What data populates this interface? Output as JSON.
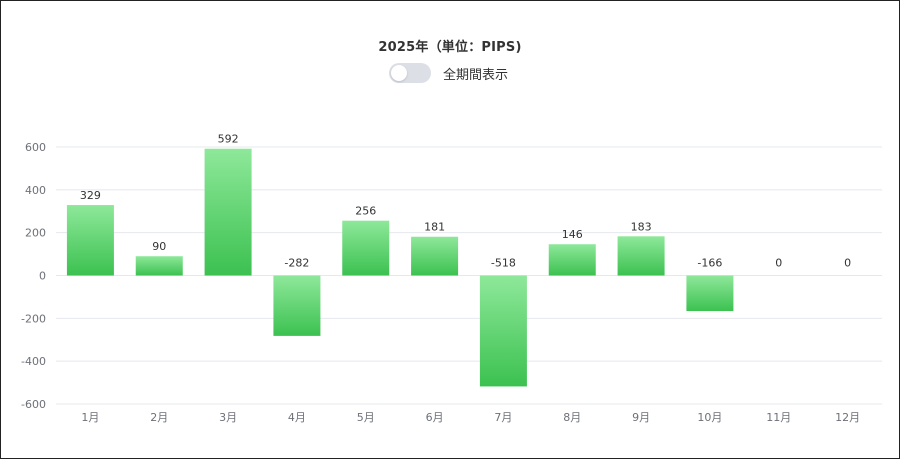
{
  "header": {
    "title": "2025年（単位：PIPS)",
    "toggle_label": "全期間表示",
    "toggle_on": false
  },
  "colors": {
    "bar_top": "#8ee89a",
    "bar_bottom": "#3cc150",
    "grid": "#e6e8ee",
    "axis_text": "#6e7079",
    "toggle_off": "#dcdfe6"
  },
  "chart_data": {
    "type": "bar",
    "title": "2025年（単位：PIPS)",
    "xlabel": "",
    "ylabel": "",
    "categories": [
      "1月",
      "2月",
      "3月",
      "4月",
      "5月",
      "6月",
      "7月",
      "8月",
      "9月",
      "10月",
      "11月",
      "12月"
    ],
    "values": [
      329,
      90,
      592,
      -282,
      256,
      181,
      -518,
      146,
      183,
      -166,
      0,
      0
    ],
    "data_labels": [
      "329",
      "90",
      "592",
      "-282",
      "256",
      "181",
      "-518",
      "146",
      "183",
      "-166",
      "0",
      "0"
    ],
    "yticks": [
      600,
      400,
      200,
      0,
      -200,
      -400,
      -600
    ],
    "ytick_labels": [
      "600",
      "400",
      "200",
      "0",
      "-200",
      "-400",
      "-600"
    ],
    "ylim": [
      -600,
      600
    ],
    "grid": true,
    "legend": "none"
  }
}
